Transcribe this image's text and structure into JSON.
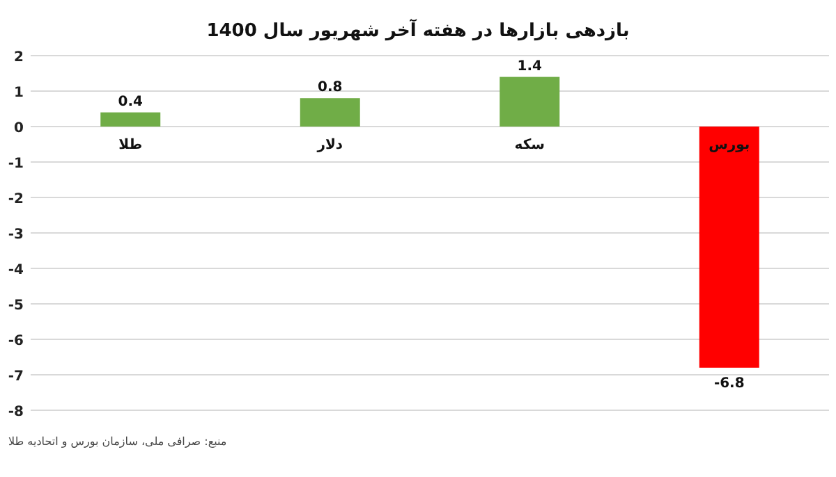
{
  "chart_data": {
    "type": "bar",
    "title": "بازدهی بازارها در هفته آخر شهریور سال 1400",
    "categories": [
      "طلا",
      "دلار",
      "سکه",
      "بورس"
    ],
    "values": [
      0.4,
      0.8,
      1.4,
      -6.8
    ],
    "colors": [
      "#70ad47",
      "#70ad47",
      "#70ad47",
      "#ff0000"
    ],
    "ylim": [
      -8,
      2
    ],
    "yticks": [
      2,
      1,
      0,
      -1,
      -2,
      -3,
      -4,
      -5,
      -6,
      -7,
      -8
    ],
    "grid": true,
    "data_labels": true,
    "annotations": [
      "منبع: صرافی ملی، سازمان بورس و اتحادیه طلا"
    ]
  }
}
